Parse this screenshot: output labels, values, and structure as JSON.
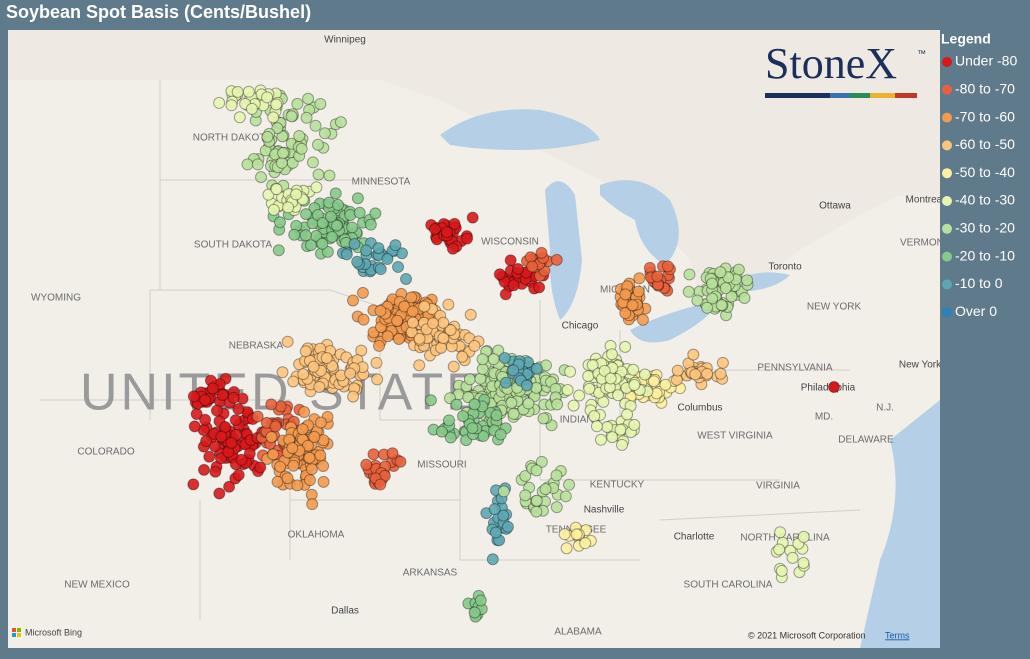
{
  "header": {
    "title": "Soybean Spot Basis (Cents/Bushel)"
  },
  "legend": {
    "title": "Legend",
    "items": [
      {
        "label": "Under -80",
        "color": "#d7191c"
      },
      {
        "label": "-80 to -70",
        "color": "#e8603c"
      },
      {
        "label": "-70 to -60",
        "color": "#f39a4f"
      },
      {
        "label": "-60 to -50",
        "color": "#fdc47d"
      },
      {
        "label": "-50 to -40",
        "color": "#fdf0a0"
      },
      {
        "label": "-40 to -30",
        "color": "#e6f5b0"
      },
      {
        "label": "-30 to -20",
        "color": "#b8e09b"
      },
      {
        "label": "-20 to -10",
        "color": "#86c98a"
      },
      {
        "label": "-10 to 0",
        "color": "#5ea7b2"
      },
      {
        "label": "Over 0",
        "color": "#2b83ba"
      }
    ]
  },
  "map": {
    "big_label": "UNITED STATES",
    "labels": [
      "Winnipeg",
      "NORTH DAKOTA",
      "MINNESOTA",
      "SOUTH DAKOTA",
      "WYOMING",
      "NEBRASKA",
      "COLORADO",
      "MISSOURI",
      "WISCONSIN",
      "MICHIGAN",
      "Chicago",
      "INDIANA",
      "Columbus",
      "Ottawa",
      "Toronto",
      "Montreal",
      "VERMONT",
      "NEW YORK",
      "PENNSYLVANIA",
      "New York",
      "Philadelphia",
      "N.J.",
      "MD.",
      "DELAWARE",
      "WEST VIRGINIA",
      "VIRGINIA",
      "KENTUCKY",
      "Nashville",
      "TENNESSEE",
      "Charlotte",
      "NORTH CAROLINA",
      "SOUTH CAROLINA",
      "OKLAHOMA",
      "ARKANSAS",
      "NEW MEXICO",
      "Dallas",
      "ALABAMA"
    ]
  },
  "logo": {
    "text": "StoneX",
    "mark": "™"
  },
  "attribution": {
    "provider": "Microsoft Bing",
    "copyright": "© 2021 Microsoft Corporation",
    "terms": "Terms"
  }
}
